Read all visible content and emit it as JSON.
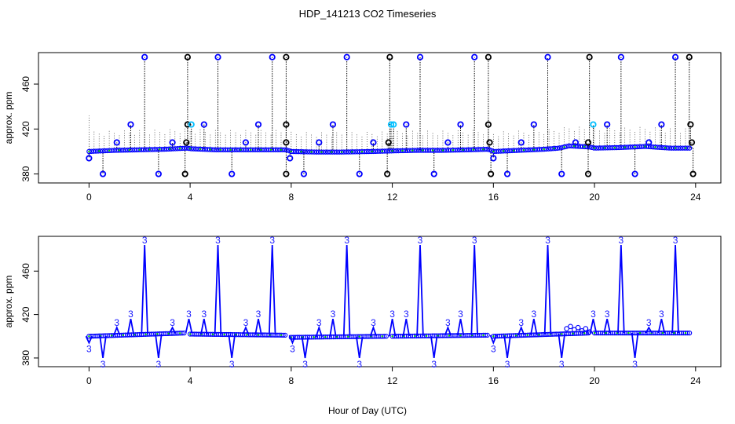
{
  "title": "HDP_141213  CO2 Timeseries",
  "xlabel": "Hour of Day (UTC)",
  "colors": {
    "blue": "#0000ff",
    "black": "#000000",
    "cyan": "#00bfff",
    "green": "#00cc00",
    "label3": "#1a1aff"
  },
  "chart_data": [
    {
      "type": "scatter",
      "panel": "top",
      "ylabel": "approx. ppm",
      "xlim": [
        -2,
        25
      ],
      "ylim": [
        372,
        488
      ],
      "xticks": [
        0,
        4,
        8,
        12,
        16,
        20,
        24
      ],
      "yticks": [
        380,
        420,
        460
      ],
      "baseline": [
        [
          0,
          400
        ],
        [
          1,
          401
        ],
        [
          2,
          401.5
        ],
        [
          3,
          402
        ],
        [
          3.9,
          403
        ],
        [
          4,
          402.5
        ],
        [
          5,
          401.5
        ],
        [
          6,
          401.5
        ],
        [
          7.8,
          401.5
        ],
        [
          8,
          400
        ],
        [
          9,
          399.5
        ],
        [
          10,
          399.5
        ],
        [
          11.2,
          400
        ],
        [
          12,
          400.5
        ],
        [
          13,
          401
        ],
        [
          14,
          401
        ],
        [
          15,
          401.5
        ],
        [
          15.8,
          402
        ],
        [
          16,
          400
        ],
        [
          17,
          401
        ],
        [
          18,
          402
        ],
        [
          18.6,
          403
        ],
        [
          19,
          405
        ],
        [
          19.8,
          404
        ],
        [
          20,
          403
        ],
        [
          21,
          403.5
        ],
        [
          22,
          404.5
        ],
        [
          23,
          403
        ],
        [
          23.8,
          403
        ]
      ],
      "outliers": [
        {
          "x": 0.0,
          "y": 394,
          "color": "blue"
        },
        {
          "x": 0.55,
          "y": 380,
          "color": "blue"
        },
        {
          "x": 1.1,
          "y": 408,
          "color": "blue"
        },
        {
          "x": 1.65,
          "y": 424,
          "color": "blue"
        },
        {
          "x": 2.2,
          "y": 484,
          "color": "blue"
        },
        {
          "x": 2.75,
          "y": 380,
          "color": "blue"
        },
        {
          "x": 3.3,
          "y": 408,
          "color": "blue"
        },
        {
          "x": 3.8,
          "y": 380,
          "color": "black"
        },
        {
          "x": 3.85,
          "y": 408,
          "color": "black"
        },
        {
          "x": 3.9,
          "y": 424,
          "color": "black"
        },
        {
          "x": 3.9,
          "y": 484,
          "color": "black"
        },
        {
          "x": 4.05,
          "y": 424,
          "color": "cyan"
        },
        {
          "x": 4.55,
          "y": 424,
          "color": "blue"
        },
        {
          "x": 5.1,
          "y": 484,
          "color": "blue"
        },
        {
          "x": 5.65,
          "y": 380,
          "color": "blue"
        },
        {
          "x": 6.2,
          "y": 408,
          "color": "blue"
        },
        {
          "x": 6.7,
          "y": 424,
          "color": "blue"
        },
        {
          "x": 7.25,
          "y": 484,
          "color": "blue"
        },
        {
          "x": 7.8,
          "y": 484,
          "color": "black"
        },
        {
          "x": 7.8,
          "y": 424,
          "color": "black"
        },
        {
          "x": 7.8,
          "y": 408,
          "color": "black"
        },
        {
          "x": 7.8,
          "y": 380,
          "color": "black"
        },
        {
          "x": 7.95,
          "y": 394,
          "color": "blue"
        },
        {
          "x": 8.5,
          "y": 380,
          "color": "blue"
        },
        {
          "x": 9.1,
          "y": 408,
          "color": "blue"
        },
        {
          "x": 9.65,
          "y": 424,
          "color": "blue"
        },
        {
          "x": 10.2,
          "y": 484,
          "color": "blue"
        },
        {
          "x": 10.7,
          "y": 380,
          "color": "blue"
        },
        {
          "x": 11.25,
          "y": 408,
          "color": "blue"
        },
        {
          "x": 11.8,
          "y": 380,
          "color": "black"
        },
        {
          "x": 11.85,
          "y": 408,
          "color": "black"
        },
        {
          "x": 11.9,
          "y": 484,
          "color": "black"
        },
        {
          "x": 11.95,
          "y": 424,
          "color": "cyan"
        },
        {
          "x": 12.05,
          "y": 424,
          "color": "cyan"
        },
        {
          "x": 12.55,
          "y": 424,
          "color": "blue"
        },
        {
          "x": 13.1,
          "y": 484,
          "color": "blue"
        },
        {
          "x": 13.65,
          "y": 380,
          "color": "blue"
        },
        {
          "x": 14.2,
          "y": 408,
          "color": "blue"
        },
        {
          "x": 14.7,
          "y": 424,
          "color": "blue"
        },
        {
          "x": 15.25,
          "y": 484,
          "color": "blue"
        },
        {
          "x": 15.8,
          "y": 484,
          "color": "black"
        },
        {
          "x": 15.8,
          "y": 424,
          "color": "black"
        },
        {
          "x": 15.85,
          "y": 408,
          "color": "black"
        },
        {
          "x": 15.9,
          "y": 380,
          "color": "black"
        },
        {
          "x": 16.0,
          "y": 394,
          "color": "blue"
        },
        {
          "x": 16.55,
          "y": 380,
          "color": "blue"
        },
        {
          "x": 17.1,
          "y": 408,
          "color": "blue"
        },
        {
          "x": 17.6,
          "y": 424,
          "color": "blue"
        },
        {
          "x": 18.15,
          "y": 484,
          "color": "blue"
        },
        {
          "x": 18.7,
          "y": 380,
          "color": "blue"
        },
        {
          "x": 19.25,
          "y": 408,
          "color": "blue"
        },
        {
          "x": 19.75,
          "y": 380,
          "color": "black"
        },
        {
          "x": 19.75,
          "y": 408,
          "color": "black"
        },
        {
          "x": 19.8,
          "y": 484,
          "color": "black"
        },
        {
          "x": 19.95,
          "y": 424,
          "color": "cyan"
        },
        {
          "x": 20.5,
          "y": 424,
          "color": "blue"
        },
        {
          "x": 21.05,
          "y": 484,
          "color": "blue"
        },
        {
          "x": 21.6,
          "y": 380,
          "color": "blue"
        },
        {
          "x": 22.15,
          "y": 408,
          "color": "blue"
        },
        {
          "x": 22.65,
          "y": 424,
          "color": "blue"
        },
        {
          "x": 23.2,
          "y": 484,
          "color": "blue"
        },
        {
          "x": 23.75,
          "y": 484,
          "color": "black"
        },
        {
          "x": 23.8,
          "y": 424,
          "color": "black"
        },
        {
          "x": 23.85,
          "y": 408,
          "color": "black"
        },
        {
          "x": 23.9,
          "y": 380,
          "color": "black"
        }
      ]
    },
    {
      "type": "line",
      "panel": "bottom",
      "ylabel": "approx. ppm",
      "xlim": [
        -2,
        25
      ],
      "ylim": [
        372,
        492
      ],
      "xticks": [
        0,
        4,
        8,
        12,
        16,
        20,
        24
      ],
      "yticks": [
        380,
        420,
        460
      ],
      "point_label": "3",
      "segments": [
        {
          "x0": 0.0,
          "x1": 3.8,
          "y0": 400,
          "y1": 403
        },
        {
          "x0": 4.0,
          "x1": 7.8,
          "y0": 402,
          "y1": 401
        },
        {
          "x0": 8.0,
          "x1": 11.8,
          "y0": 399,
          "y1": 400
        },
        {
          "x0": 12.0,
          "x1": 15.8,
          "y0": 400,
          "y1": 401
        },
        {
          "x0": 16.0,
          "x1": 19.8,
          "y0": 400,
          "y1": 403
        },
        {
          "x0": 20.0,
          "x1": 23.8,
          "y0": 403,
          "y1": 403
        }
      ],
      "spikes": [
        {
          "x": 0.0,
          "y": 394
        },
        {
          "x": 0.55,
          "y": 380
        },
        {
          "x": 1.1,
          "y": 408
        },
        {
          "x": 1.65,
          "y": 416
        },
        {
          "x": 2.2,
          "y": 484
        },
        {
          "x": 2.75,
          "y": 380
        },
        {
          "x": 3.3,
          "y": 408
        },
        {
          "x": 3.95,
          "y": 416
        },
        {
          "x": 4.55,
          "y": 416
        },
        {
          "x": 5.1,
          "y": 484
        },
        {
          "x": 5.65,
          "y": 380
        },
        {
          "x": 6.2,
          "y": 408
        },
        {
          "x": 6.7,
          "y": 416
        },
        {
          "x": 7.25,
          "y": 484
        },
        {
          "x": 8.05,
          "y": 394
        },
        {
          "x": 8.55,
          "y": 380
        },
        {
          "x": 9.1,
          "y": 408
        },
        {
          "x": 9.65,
          "y": 416
        },
        {
          "x": 10.2,
          "y": 484
        },
        {
          "x": 10.7,
          "y": 380
        },
        {
          "x": 11.25,
          "y": 408
        },
        {
          "x": 12.0,
          "y": 416
        },
        {
          "x": 12.55,
          "y": 416
        },
        {
          "x": 13.1,
          "y": 484
        },
        {
          "x": 13.65,
          "y": 380
        },
        {
          "x": 14.2,
          "y": 408
        },
        {
          "x": 14.7,
          "y": 416
        },
        {
          "x": 15.25,
          "y": 484
        },
        {
          "x": 16.0,
          "y": 394
        },
        {
          "x": 16.55,
          "y": 380
        },
        {
          "x": 17.1,
          "y": 408
        },
        {
          "x": 17.6,
          "y": 416
        },
        {
          "x": 18.15,
          "y": 484
        },
        {
          "x": 18.7,
          "y": 380
        },
        {
          "x": 19.95,
          "y": 416
        },
        {
          "x": 20.5,
          "y": 416
        },
        {
          "x": 21.05,
          "y": 484
        },
        {
          "x": 21.6,
          "y": 380
        },
        {
          "x": 22.15,
          "y": 408
        },
        {
          "x": 22.65,
          "y": 416
        },
        {
          "x": 23.2,
          "y": 484
        }
      ]
    }
  ]
}
